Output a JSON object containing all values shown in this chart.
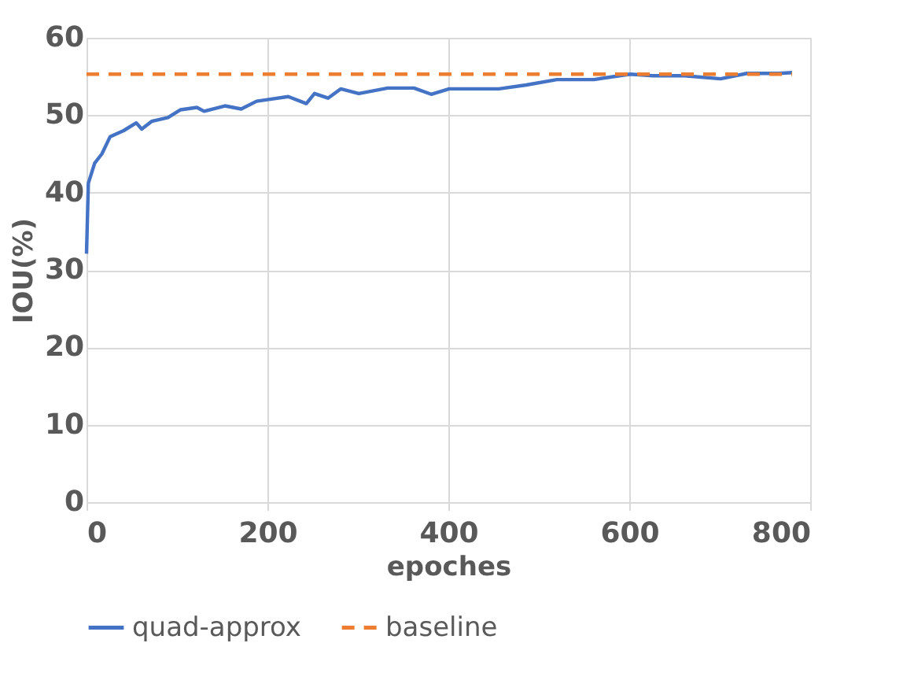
{
  "chart_data": {
    "type": "line",
    "xlabel": "epoches",
    "ylabel": "IOU(%)",
    "xlim": [
      0,
      800
    ],
    "xticks": [
      0,
      200,
      400,
      600,
      800
    ],
    "ylim": [
      0,
      60
    ],
    "yticks": [
      0,
      10,
      20,
      30,
      40,
      50,
      60
    ],
    "grid": true,
    "legend": "bottom",
    "marker": "none",
    "series": [
      {
        "name": "quad-approx",
        "color": "#4472c4",
        "line_style": "solid",
        "x": [
          0,
          2,
          9,
          17,
          26,
          41,
          55,
          61,
          72,
          90,
          104,
          122,
          130,
          153,
          171,
          188,
          200,
          223,
          243,
          252,
          267,
          281,
          301,
          333,
          362,
          381,
          401,
          427,
          456,
          486,
          520,
          561,
          601,
          626,
          661,
          701,
          730,
          765,
          780
        ],
        "values": [
          32.1,
          41.2,
          43.8,
          45,
          47.2,
          48,
          49,
          48.2,
          49.2,
          49.7,
          50.7,
          51,
          50.5,
          51.2,
          50.8,
          51.8,
          52,
          52.4,
          51.5,
          52.8,
          52.2,
          53.4,
          52.8,
          53.5,
          53.5,
          52.7,
          53.4,
          53.4,
          53.4,
          53.9,
          54.6,
          54.6,
          55.3,
          55.1,
          55.1,
          54.7,
          55.4,
          55.4,
          55.5
        ]
      },
      {
        "name": "baseline",
        "color": "#ed7d31",
        "line_style": "dashed",
        "x": [
          0,
          780
        ],
        "values": [
          55.3,
          55.3
        ]
      }
    ]
  }
}
